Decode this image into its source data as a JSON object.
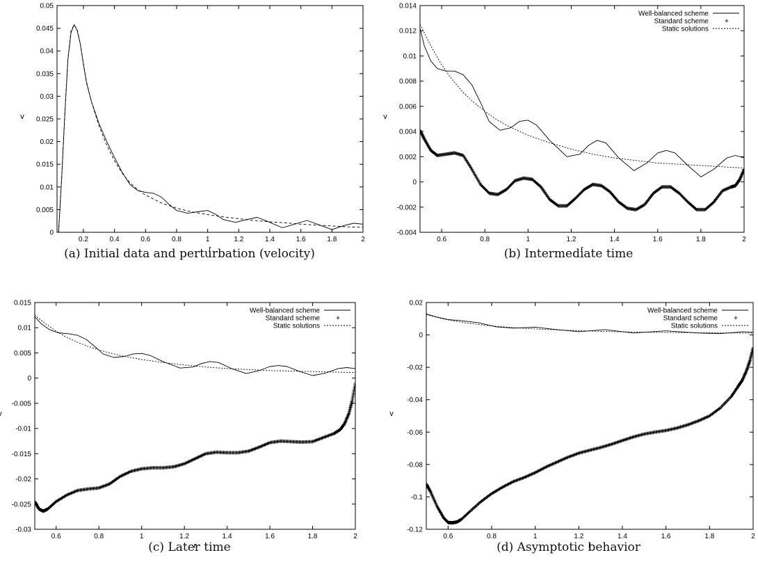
{
  "chart_data": [
    {
      "type": "line",
      "caption": "(a) Initial data and perturbation (velocity)",
      "xlabel": "r",
      "ylabel": "v",
      "xlim": [
        0.03,
        2.0
      ],
      "ylim": [
        0,
        0.05
      ],
      "xticks": [
        0.2,
        0.4,
        0.6,
        0.8,
        1,
        1.2,
        1.4,
        1.6,
        1.8,
        2
      ],
      "yticks": [
        0,
        0.005,
        0.01,
        0.015,
        0.02,
        0.025,
        0.03,
        0.035,
        0.04,
        0.045,
        0.05
      ],
      "xtick_labels": [
        "0.2",
        "0.4",
        "0.6",
        "0.8",
        "1",
        "1.2",
        "1.4",
        "1.6",
        "1.8",
        "2"
      ],
      "ytick_labels": [
        "0",
        "0.005",
        "0.01",
        "0.015",
        "0.02",
        "0.025",
        "0.03",
        "0.035",
        "0.04",
        "0.045",
        "0.05"
      ],
      "grid": false,
      "legend": null,
      "series": [
        {
          "style": "solid",
          "x": [
            0.04,
            0.06,
            0.08,
            0.1,
            0.12,
            0.14,
            0.16,
            0.18,
            0.2,
            0.22,
            0.25,
            0.3,
            0.35,
            0.4,
            0.45,
            0.5,
            0.55,
            0.6,
            0.65,
            0.7,
            0.75,
            0.8,
            0.87,
            0.95,
            1.0,
            1.05,
            1.1,
            1.18,
            1.25,
            1.32,
            1.4,
            1.48,
            1.55,
            1.64,
            1.72,
            1.8,
            1.88,
            1.94,
            2.0
          ],
          "y": [
            0.0,
            0.012,
            0.026,
            0.038,
            0.044,
            0.0458,
            0.0445,
            0.0415,
            0.037,
            0.033,
            0.029,
            0.024,
            0.02,
            0.0165,
            0.0132,
            0.0105,
            0.0092,
            0.0088,
            0.0086,
            0.0078,
            0.0062,
            0.0048,
            0.0042,
            0.0046,
            0.0048,
            0.004,
            0.0028,
            0.0022,
            0.0028,
            0.0033,
            0.0022,
            0.001,
            0.0017,
            0.0026,
            0.0016,
            0.0006,
            0.0015,
            0.002,
            0.0018
          ]
        },
        {
          "style": "dashed",
          "x": [
            0.04,
            0.06,
            0.08,
            0.1,
            0.12,
            0.14,
            0.16,
            0.18,
            0.2,
            0.22,
            0.25,
            0.3,
            0.35,
            0.4,
            0.45,
            0.5,
            0.55,
            0.6,
            0.7,
            0.8,
            0.9,
            1.0,
            1.1,
            1.2,
            1.3,
            1.4,
            1.5,
            1.6,
            1.7,
            1.8,
            1.9,
            2.0
          ],
          "y": [
            0.0,
            0.012,
            0.026,
            0.038,
            0.0445,
            0.0457,
            0.0447,
            0.0415,
            0.0372,
            0.0332,
            0.029,
            0.0235,
            0.0192,
            0.0158,
            0.013,
            0.0109,
            0.0094,
            0.0082,
            0.0065,
            0.0053,
            0.0045,
            0.0039,
            0.0034,
            0.003,
            0.0026,
            0.0023,
            0.0021,
            0.0018,
            0.0016,
            0.0014,
            0.0012,
            0.0011
          ]
        }
      ]
    },
    {
      "type": "line",
      "caption": "(b) Intermediate time",
      "xlabel": "r",
      "ylabel": "v",
      "xlim": [
        0.5,
        2.0
      ],
      "ylim": [
        -0.004,
        0.014
      ],
      "xticks": [
        0.6,
        0.8,
        1,
        1.2,
        1.4,
        1.6,
        1.8,
        2
      ],
      "yticks": [
        -0.004,
        -0.002,
        0,
        0.002,
        0.004,
        0.006,
        0.008,
        0.01,
        0.012,
        0.014
      ],
      "xtick_labels": [
        "0.6",
        "0.8",
        "1",
        "1.2",
        "1.4",
        "1.6",
        "1.8",
        "2"
      ],
      "ytick_labels": [
        "-0.004",
        "-0.002",
        "0",
        "0.002",
        "0.004",
        "0.006",
        "0.008",
        "0.01",
        "0.012",
        "0.014"
      ],
      "grid": false,
      "legend": "top-right",
      "series": [
        {
          "name": "Well-balanced scheme",
          "style": "solid",
          "x": [
            0.5,
            0.52,
            0.55,
            0.58,
            0.62,
            0.66,
            0.7,
            0.74,
            0.78,
            0.82,
            0.87,
            0.92,
            0.96,
            1.0,
            1.04,
            1.1,
            1.18,
            1.24,
            1.28,
            1.32,
            1.36,
            1.42,
            1.49,
            1.55,
            1.6,
            1.64,
            1.68,
            1.74,
            1.8,
            1.86,
            1.92,
            1.96,
            2.0
          ],
          "y": [
            0.0122,
            0.0108,
            0.0096,
            0.009,
            0.0088,
            0.0088,
            0.0085,
            0.0077,
            0.0063,
            0.0048,
            0.0041,
            0.0043,
            0.0048,
            0.0049,
            0.0045,
            0.0033,
            0.002,
            0.0022,
            0.0029,
            0.0033,
            0.0031,
            0.0019,
            0.0009,
            0.0015,
            0.0023,
            0.0025,
            0.0023,
            0.0013,
            0.0004,
            0.001,
            0.0019,
            0.0021,
            0.0019
          ]
        },
        {
          "name": "Standard scheme",
          "style": "plus",
          "x": [
            0.5,
            0.52,
            0.55,
            0.58,
            0.62,
            0.66,
            0.7,
            0.74,
            0.78,
            0.82,
            0.86,
            0.9,
            0.94,
            0.98,
            1.02,
            1.06,
            1.1,
            1.14,
            1.18,
            1.22,
            1.26,
            1.3,
            1.34,
            1.38,
            1.42,
            1.46,
            1.5,
            1.54,
            1.58,
            1.62,
            1.66,
            1.7,
            1.74,
            1.78,
            1.82,
            1.86,
            1.9,
            1.94,
            1.96,
            1.98,
            2.0
          ],
          "y": [
            0.0041,
            0.0034,
            0.0025,
            0.0021,
            0.0022,
            0.0023,
            0.0021,
            0.001,
            -0.0002,
            -0.0009,
            -0.001,
            -0.0006,
            0.0001,
            0.0003,
            0.0002,
            -0.0004,
            -0.0014,
            -0.0019,
            -0.0019,
            -0.0013,
            -0.0006,
            -0.0002,
            -0.0003,
            -0.0008,
            -0.0016,
            -0.0021,
            -0.0022,
            -0.0018,
            -0.0009,
            -0.0004,
            -0.0004,
            -0.0009,
            -0.0016,
            -0.0022,
            -0.0022,
            -0.0016,
            -0.0007,
            -0.0004,
            -0.0003,
            0.0002,
            0.001
          ]
        },
        {
          "name": "Static solutions",
          "style": "dotted",
          "x": [
            0.5,
            0.55,
            0.6,
            0.65,
            0.7,
            0.75,
            0.8,
            0.85,
            0.9,
            0.95,
            1.0,
            1.1,
            1.2,
            1.3,
            1.4,
            1.5,
            1.6,
            1.7,
            1.8,
            1.9,
            2.0
          ],
          "y": [
            0.0125,
            0.0108,
            0.0093,
            0.0081,
            0.0071,
            0.0063,
            0.0056,
            0.005,
            0.0045,
            0.0041,
            0.0037,
            0.0031,
            0.0026,
            0.0022,
            0.0019,
            0.0017,
            0.0015,
            0.0014,
            0.0013,
            0.0012,
            0.0011
          ]
        }
      ]
    },
    {
      "type": "line",
      "caption": "(c) Later time",
      "xlabel": "r",
      "ylabel": "v",
      "xlim": [
        0.5,
        2.0
      ],
      "ylim": [
        -0.03,
        0.015
      ],
      "xticks": [
        0.6,
        0.8,
        1,
        1.2,
        1.4,
        1.6,
        1.8,
        2
      ],
      "yticks": [
        -0.03,
        -0.025,
        -0.02,
        -0.015,
        -0.01,
        -0.005,
        0,
        0.005,
        0.01,
        0.015
      ],
      "xtick_labels": [
        "0.6",
        "0.8",
        "1",
        "1.2",
        "1.4",
        "1.6",
        "1.8",
        "2"
      ],
      "ytick_labels": [
        "-0.03",
        "-0.025",
        "-0.02",
        "-0.015",
        "-0.01",
        "-0.005",
        "0",
        "0.005",
        "0.01",
        "0.015"
      ],
      "grid": false,
      "legend": "top-right",
      "series": [
        {
          "name": "Well-balanced scheme",
          "style": "solid",
          "x": [
            0.5,
            0.53,
            0.57,
            0.61,
            0.66,
            0.7,
            0.74,
            0.78,
            0.82,
            0.87,
            0.92,
            0.96,
            1.0,
            1.04,
            1.1,
            1.18,
            1.24,
            1.28,
            1.32,
            1.36,
            1.42,
            1.49,
            1.55,
            1.6,
            1.64,
            1.68,
            1.74,
            1.8,
            1.86,
            1.92,
            1.96,
            2.0
          ],
          "y": [
            0.0122,
            0.0108,
            0.0096,
            0.009,
            0.0088,
            0.0085,
            0.0077,
            0.0063,
            0.0048,
            0.0041,
            0.0043,
            0.0048,
            0.0049,
            0.0045,
            0.0033,
            0.002,
            0.0022,
            0.0029,
            0.0033,
            0.0031,
            0.0019,
            0.0009,
            0.0015,
            0.0023,
            0.0025,
            0.0023,
            0.0013,
            0.0005,
            0.001,
            0.0019,
            0.0021,
            0.0019
          ]
        },
        {
          "name": "Standard scheme",
          "style": "plus",
          "x": [
            0.5,
            0.52,
            0.54,
            0.56,
            0.6,
            0.65,
            0.7,
            0.75,
            0.8,
            0.85,
            0.9,
            0.95,
            1.0,
            1.05,
            1.1,
            1.15,
            1.2,
            1.25,
            1.3,
            1.35,
            1.4,
            1.45,
            1.5,
            1.55,
            1.6,
            1.65,
            1.7,
            1.75,
            1.8,
            1.85,
            1.9,
            1.93,
            1.95,
            1.97,
            1.985,
            2.0
          ],
          "y": [
            -0.0245,
            -0.026,
            -0.0264,
            -0.026,
            -0.0245,
            -0.0232,
            -0.0223,
            -0.022,
            -0.0218,
            -0.021,
            -0.0195,
            -0.0185,
            -0.018,
            -0.0178,
            -0.0178,
            -0.0176,
            -0.017,
            -0.016,
            -0.015,
            -0.0147,
            -0.0148,
            -0.0148,
            -0.0145,
            -0.0137,
            -0.0128,
            -0.0125,
            -0.0126,
            -0.0127,
            -0.0126,
            -0.0118,
            -0.011,
            -0.0102,
            -0.009,
            -0.007,
            -0.0045,
            -0.001
          ]
        },
        {
          "name": "Static solutions",
          "style": "dotted",
          "x": [
            0.5,
            0.55,
            0.6,
            0.65,
            0.7,
            0.75,
            0.8,
            0.85,
            0.9,
            0.95,
            1.0,
            1.1,
            1.2,
            1.3,
            1.4,
            1.5,
            1.6,
            1.7,
            1.8,
            1.9,
            2.0
          ],
          "y": [
            0.0125,
            0.0108,
            0.0093,
            0.0081,
            0.0071,
            0.0063,
            0.0056,
            0.005,
            0.0045,
            0.0041,
            0.0037,
            0.0031,
            0.0026,
            0.0022,
            0.0019,
            0.0017,
            0.0015,
            0.0014,
            0.0013,
            0.0012,
            0.0011
          ]
        }
      ]
    },
    {
      "type": "line",
      "caption": "(d) Asymptotic behavior",
      "xlabel": "r",
      "ylabel": "v",
      "xlim": [
        0.5,
        2.0
      ],
      "ylim": [
        -0.12,
        0.02
      ],
      "xticks": [
        0.6,
        0.8,
        1,
        1.2,
        1.4,
        1.6,
        1.8,
        2
      ],
      "yticks": [
        -0.12,
        -0.1,
        -0.08,
        -0.06,
        -0.04,
        -0.02,
        0,
        0.02
      ],
      "xtick_labels": [
        "0.6",
        "0.8",
        "1",
        "1.2",
        "1.4",
        "1.6",
        "1.8",
        "2"
      ],
      "ytick_labels": [
        "-0.12",
        "-0.1",
        "-0.08",
        "-0.06",
        "-0.04",
        "-0.02",
        "0",
        "0.02"
      ],
      "grid": false,
      "legend": "top-right",
      "series": [
        {
          "name": "Well-balanced scheme",
          "style": "solid",
          "x": [
            0.5,
            0.55,
            0.6,
            0.66,
            0.74,
            0.82,
            0.9,
            1.0,
            1.1,
            1.2,
            1.32,
            1.45,
            1.6,
            1.75,
            1.85,
            1.95,
            2.0
          ],
          "y": [
            0.013,
            0.011,
            0.0095,
            0.0088,
            0.0075,
            0.005,
            0.0042,
            0.0048,
            0.0033,
            0.002,
            0.0033,
            0.0012,
            0.0025,
            0.0012,
            0.0008,
            0.0019,
            0.0017
          ]
        },
        {
          "name": "Standard scheme",
          "style": "plus",
          "x": [
            0.5,
            0.52,
            0.55,
            0.58,
            0.6,
            0.62,
            0.64,
            0.66,
            0.7,
            0.75,
            0.8,
            0.85,
            0.9,
            0.95,
            1.0,
            1.05,
            1.1,
            1.15,
            1.2,
            1.25,
            1.3,
            1.35,
            1.4,
            1.45,
            1.5,
            1.55,
            1.6,
            1.65,
            1.7,
            1.75,
            1.8,
            1.85,
            1.9,
            1.93,
            1.95,
            1.97,
            1.985,
            2.0
          ],
          "y": [
            -0.092,
            -0.097,
            -0.106,
            -0.113,
            -0.1158,
            -0.116,
            -0.1155,
            -0.114,
            -0.109,
            -0.103,
            -0.098,
            -0.094,
            -0.0905,
            -0.088,
            -0.085,
            -0.0815,
            -0.0785,
            -0.0755,
            -0.073,
            -0.0712,
            -0.0695,
            -0.0675,
            -0.0652,
            -0.063,
            -0.0612,
            -0.06,
            -0.059,
            -0.0575,
            -0.0555,
            -0.053,
            -0.05,
            -0.045,
            -0.038,
            -0.032,
            -0.028,
            -0.022,
            -0.016,
            -0.008
          ]
        },
        {
          "name": "Static solutions",
          "style": "dotted",
          "x": [
            0.5,
            0.55,
            0.6,
            0.65,
            0.7,
            0.75,
            0.8,
            0.85,
            0.9,
            0.95,
            1.0,
            1.1,
            1.2,
            1.3,
            1.4,
            1.5,
            1.6,
            1.7,
            1.8,
            1.9,
            2.0
          ],
          "y": [
            0.0125,
            0.0108,
            0.0093,
            0.0081,
            0.0071,
            0.0063,
            0.0056,
            0.005,
            0.0045,
            0.0041,
            0.0037,
            0.0031,
            0.0026,
            0.0022,
            0.0019,
            0.0017,
            0.0015,
            0.0014,
            0.0013,
            0.0012,
            0.0011
          ]
        }
      ]
    }
  ]
}
